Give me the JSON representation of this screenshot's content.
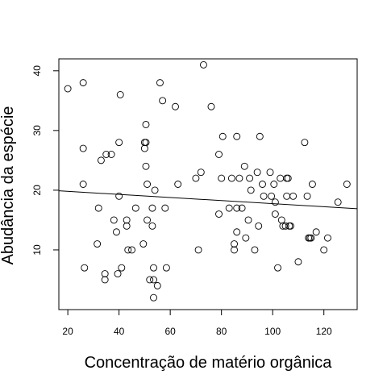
{
  "chart_data": {
    "type": "scatter",
    "title": "",
    "xlabel": "Concentração de matério orgânica",
    "ylabel": "Abudância da espécie",
    "xlim": [
      16.5,
      133
    ],
    "ylim": [
      0,
      42
    ],
    "x_ticks": [
      20,
      40,
      60,
      80,
      100,
      120
    ],
    "y_ticks": [
      10,
      20,
      30,
      40
    ],
    "grid": false,
    "legend": "none",
    "marker": "open-circle",
    "colors": {
      "points": "#000000",
      "line": "#000000",
      "frame": "#000000"
    },
    "points": [
      {
        "x": 20,
        "y": 37
      },
      {
        "x": 26,
        "y": 38
      },
      {
        "x": 26,
        "y": 27
      },
      {
        "x": 26,
        "y": 21
      },
      {
        "x": 26.5,
        "y": 7
      },
      {
        "x": 31.5,
        "y": 11
      },
      {
        "x": 32,
        "y": 17
      },
      {
        "x": 33,
        "y": 25
      },
      {
        "x": 34.5,
        "y": 5
      },
      {
        "x": 34.5,
        "y": 6
      },
      {
        "x": 35,
        "y": 26
      },
      {
        "x": 37,
        "y": 26
      },
      {
        "x": 38,
        "y": 15
      },
      {
        "x": 39,
        "y": 13
      },
      {
        "x": 39.5,
        "y": 6
      },
      {
        "x": 40,
        "y": 19
      },
      {
        "x": 40,
        "y": 28
      },
      {
        "x": 40.5,
        "y": 36
      },
      {
        "x": 41,
        "y": 7
      },
      {
        "x": 43,
        "y": 15
      },
      {
        "x": 43,
        "y": 14
      },
      {
        "x": 43.5,
        "y": 10
      },
      {
        "x": 45,
        "y": 10
      },
      {
        "x": 46.5,
        "y": 17
      },
      {
        "x": 49.5,
        "y": 11
      },
      {
        "x": 50,
        "y": 27
      },
      {
        "x": 50,
        "y": 28
      },
      {
        "x": 50.5,
        "y": 28
      },
      {
        "x": 50.5,
        "y": 31
      },
      {
        "x": 50.5,
        "y": 24
      },
      {
        "x": 51,
        "y": 21
      },
      {
        "x": 51,
        "y": 15
      },
      {
        "x": 52,
        "y": 5
      },
      {
        "x": 53,
        "y": 14
      },
      {
        "x": 53,
        "y": 17
      },
      {
        "x": 53.5,
        "y": 5
      },
      {
        "x": 53.5,
        "y": 7
      },
      {
        "x": 53.5,
        "y": 2
      },
      {
        "x": 54,
        "y": 20
      },
      {
        "x": 55,
        "y": 4
      },
      {
        "x": 56,
        "y": 38
      },
      {
        "x": 57,
        "y": 35
      },
      {
        "x": 58,
        "y": 17
      },
      {
        "x": 58.5,
        "y": 7
      },
      {
        "x": 62,
        "y": 34
      },
      {
        "x": 63,
        "y": 21
      },
      {
        "x": 70,
        "y": 22
      },
      {
        "x": 71,
        "y": 10
      },
      {
        "x": 72,
        "y": 23
      },
      {
        "x": 73,
        "y": 41
      },
      {
        "x": 76,
        "y": 34
      },
      {
        "x": 79,
        "y": 26
      },
      {
        "x": 79,
        "y": 16
      },
      {
        "x": 80,
        "y": 22
      },
      {
        "x": 80.5,
        "y": 29
      },
      {
        "x": 83,
        "y": 17
      },
      {
        "x": 84,
        "y": 22
      },
      {
        "x": 85,
        "y": 11
      },
      {
        "x": 85,
        "y": 10
      },
      {
        "x": 86,
        "y": 13
      },
      {
        "x": 86,
        "y": 29
      },
      {
        "x": 86,
        "y": 17
      },
      {
        "x": 87,
        "y": 22
      },
      {
        "x": 88,
        "y": 17
      },
      {
        "x": 89,
        "y": 24
      },
      {
        "x": 89.5,
        "y": 12
      },
      {
        "x": 90.5,
        "y": 15
      },
      {
        "x": 91,
        "y": 22
      },
      {
        "x": 91.5,
        "y": 20
      },
      {
        "x": 93,
        "y": 10
      },
      {
        "x": 94,
        "y": 23
      },
      {
        "x": 94.5,
        "y": 14
      },
      {
        "x": 95,
        "y": 29
      },
      {
        "x": 96,
        "y": 21
      },
      {
        "x": 96.5,
        "y": 19
      },
      {
        "x": 99,
        "y": 23
      },
      {
        "x": 99.5,
        "y": 19
      },
      {
        "x": 100.5,
        "y": 21
      },
      {
        "x": 101,
        "y": 16
      },
      {
        "x": 101,
        "y": 18
      },
      {
        "x": 102,
        "y": 7
      },
      {
        "x": 103,
        "y": 22
      },
      {
        "x": 103.5,
        "y": 15
      },
      {
        "x": 104,
        "y": 14
      },
      {
        "x": 105,
        "y": 14
      },
      {
        "x": 105.5,
        "y": 19
      },
      {
        "x": 105.5,
        "y": 22
      },
      {
        "x": 106,
        "y": 22
      },
      {
        "x": 106.5,
        "y": 14
      },
      {
        "x": 107,
        "y": 14
      },
      {
        "x": 108,
        "y": 19
      },
      {
        "x": 110,
        "y": 8
      },
      {
        "x": 112.5,
        "y": 28
      },
      {
        "x": 113.5,
        "y": 19
      },
      {
        "x": 114,
        "y": 12
      },
      {
        "x": 114.5,
        "y": 12
      },
      {
        "x": 115,
        "y": 12
      },
      {
        "x": 115.5,
        "y": 21
      },
      {
        "x": 117,
        "y": 13
      },
      {
        "x": 120,
        "y": 10
      },
      {
        "x": 121.5,
        "y": 12
      },
      {
        "x": 125.5,
        "y": 18
      },
      {
        "x": 129,
        "y": 21
      }
    ],
    "trend_line": {
      "x": [
        16.5,
        133
      ],
      "y": [
        19.9,
        16.9
      ]
    }
  }
}
